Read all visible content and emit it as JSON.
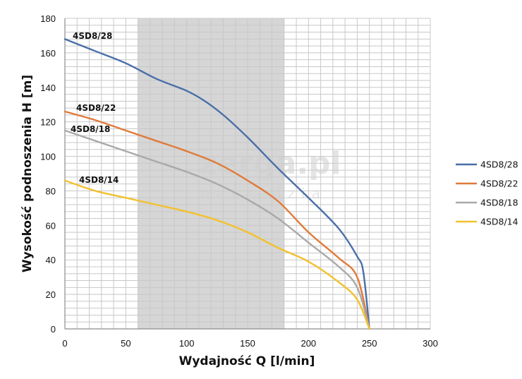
{
  "chart_data": {
    "type": "line",
    "xlabel": "Wydajność Q [l/min]",
    "ylabel": "Wysokość podnoszenia H [m]",
    "xlim": [
      0,
      300
    ],
    "ylim": [
      0,
      180
    ],
    "xticks": [
      0,
      50,
      100,
      150,
      200,
      250,
      300
    ],
    "yticks": [
      0,
      20,
      40,
      60,
      80,
      100,
      120,
      140,
      160,
      180
    ],
    "grid": true,
    "legend_position": "right",
    "highlight_band": {
      "x_from": 60,
      "x_to": 180,
      "color": "#d6d6d6"
    },
    "watermark": {
      "text": "zerga.pl",
      "subtext": "narzedzia"
    },
    "series": [
      {
        "name": "4SD8/28",
        "color": "#4a6fa8",
        "x": [
          0,
          25,
          50,
          75,
          100,
          115,
          130,
          150,
          175,
          200,
          225,
          240,
          245,
          250
        ],
        "y": [
          168,
          161,
          154,
          145,
          138,
          132,
          124,
          111,
          93,
          76,
          58,
          42,
          33,
          0
        ]
      },
      {
        "name": "4SD8/22",
        "color": "#e07b39",
        "x": [
          0,
          25,
          50,
          75,
          100,
          125,
          150,
          175,
          200,
          225,
          240,
          250
        ],
        "y": [
          126,
          121,
          115,
          109,
          103,
          96,
          86,
          74,
          56,
          41,
          30,
          0
        ]
      },
      {
        "name": "4SD8/18",
        "color": "#a9a9a9",
        "x": [
          0,
          25,
          50,
          75,
          100,
          125,
          150,
          175,
          200,
          225,
          240,
          250
        ],
        "y": [
          115,
          109,
          103,
          97,
          91,
          84,
          75,
          64,
          50,
          36,
          24,
          0
        ]
      },
      {
        "name": "4SD8/14",
        "color": "#f2c12e",
        "x": [
          0,
          25,
          50,
          75,
          100,
          125,
          150,
          175,
          200,
          225,
          240,
          250
        ],
        "y": [
          86,
          80,
          76,
          72,
          68,
          63,
          56,
          47,
          39,
          27,
          17,
          0
        ]
      }
    ],
    "series_labels": [
      "4SD8/28",
      "4SD8/22",
      "4SD8/18",
      "4SD8/14"
    ]
  }
}
